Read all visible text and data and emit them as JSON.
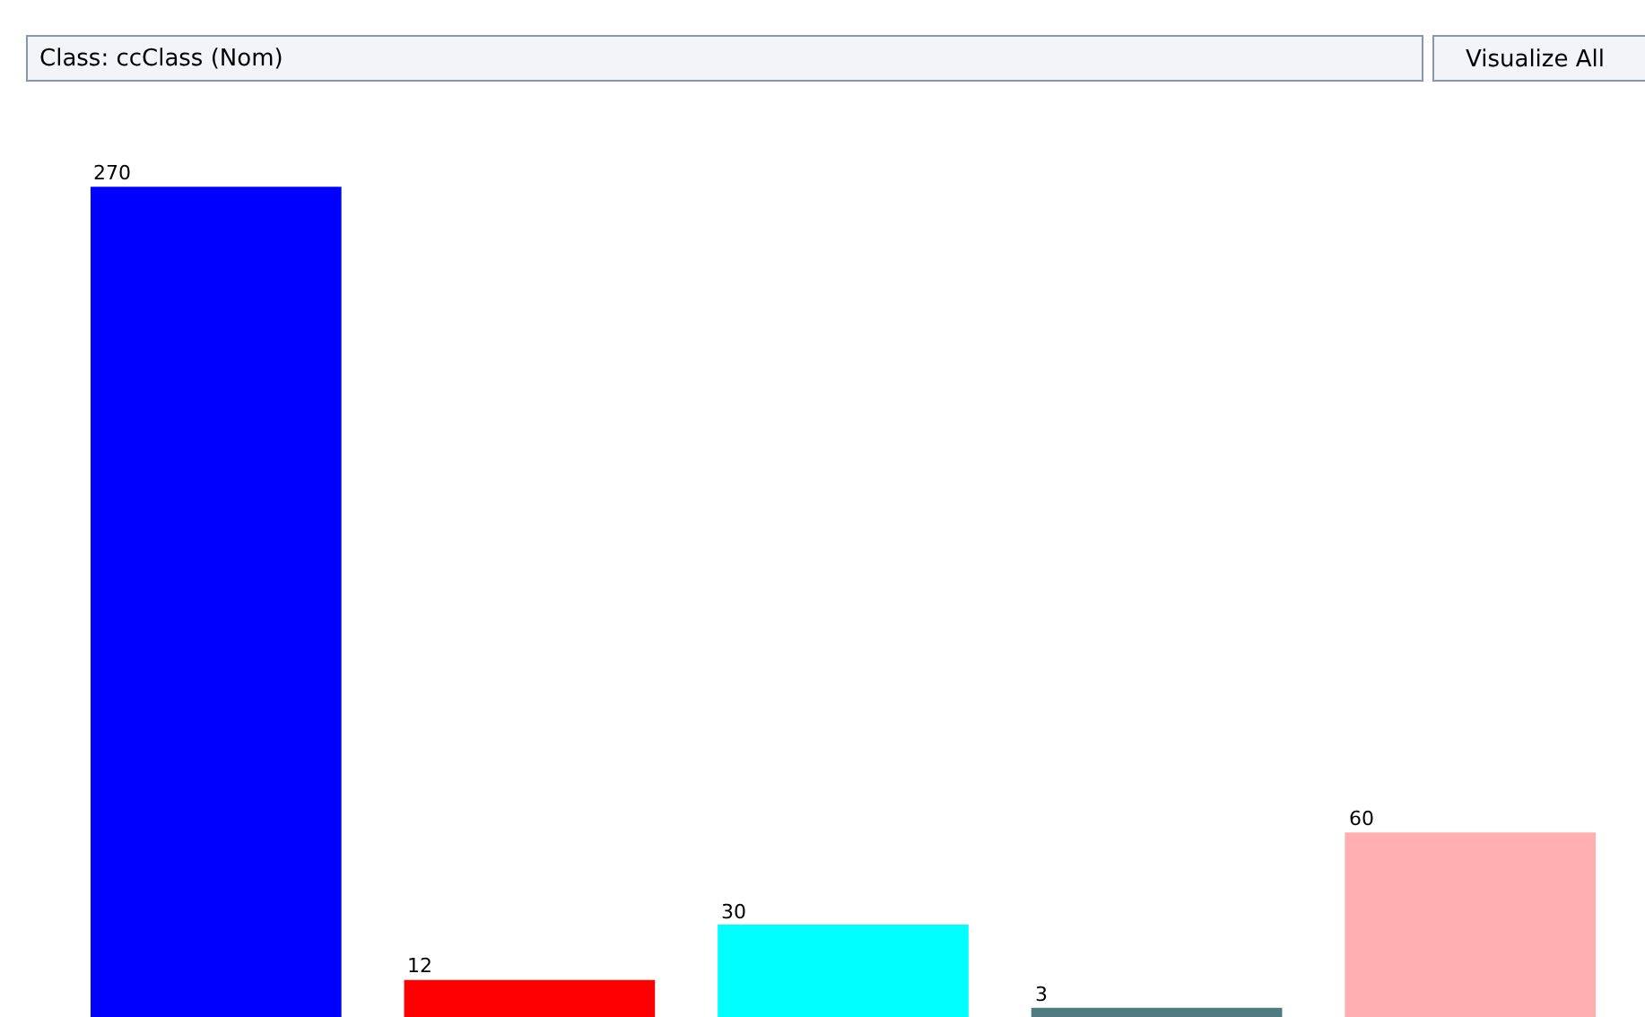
{
  "chart_data": {
    "type": "bar",
    "title": "Class: ccClass (Nom)",
    "annotations": [
      "Visualize All"
    ],
    "categories": [
      null,
      null,
      null,
      null,
      null
    ],
    "values": [
      270,
      12,
      30,
      3,
      60
    ],
    "colors": [
      "#0000ff",
      "#ff0000",
      "#00ffff",
      "#4f7c80",
      "#ffafaf"
    ],
    "data_labels": true,
    "legend": false
  }
}
